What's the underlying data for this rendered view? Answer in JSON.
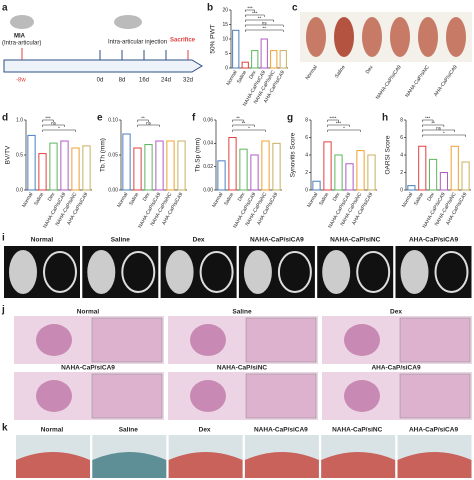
{
  "panel_labels": [
    "a",
    "b",
    "c",
    "d",
    "e",
    "f",
    "g",
    "h",
    "i",
    "j",
    "k"
  ],
  "timeline": {
    "start_title": "MIA",
    "start_subtitle": "(Intra-articular)",
    "start_day": "-8w",
    "injection_title": "Intra-articular injection",
    "days": [
      "0d",
      "8d",
      "16d",
      "24d",
      "32d"
    ],
    "end_label": "Sacrifice"
  },
  "groups": [
    "Normal",
    "Saline",
    "Dex",
    "NAHA-CaP/siCA9",
    "NAHA-CaP/siNC",
    "AHA-CaP/siCA9"
  ],
  "chart_data": [
    {
      "type": "bar",
      "ylabel": "50% PWT",
      "categories": [
        "Normal",
        "Saline",
        "Dex",
        "NAHA-CaP/siCA9",
        "NAHA-CaP/siNC",
        "AHA-CaP/siCA9"
      ],
      "values": [
        13,
        2,
        6,
        10,
        6,
        6
      ],
      "colors": [
        "#4a7fc1",
        "#e0413f",
        "#5cb85c",
        "#b05cc6",
        "#f0a030",
        "#c8b060"
      ],
      "ylim": [
        0,
        20
      ],
      "yticks": [
        0,
        5,
        10,
        15,
        20
      ],
      "annotations": [
        "***",
        "***",
        "**",
        "ns",
        "**"
      ]
    },
    {
      "type": "bar",
      "ylabel": "BV/TV",
      "categories": [
        "Normal",
        "Saline",
        "Dex",
        "NAHA-CaP/siCA9",
        "NAHA-CaP/siNC",
        "AHA-CaP/siCA9"
      ],
      "values": [
        0.78,
        0.52,
        0.67,
        0.7,
        0.6,
        0.63
      ],
      "colors": [
        "#4a7fc1",
        "#e0413f",
        "#5cb85c",
        "#b05cc6",
        "#f0a030",
        "#c8b060"
      ],
      "ylim": [
        0,
        1.0
      ],
      "yticks": [
        {
          "value": 0,
          "label": "0.0"
        },
        {
          "value": 0.5,
          "label": "0.5"
        },
        {
          "value": 1.0,
          "label": "1.0"
        }
      ],
      "annotations": [
        "***",
        "ns",
        "*"
      ]
    },
    {
      "type": "bar",
      "ylabel": "Tb.Th (mm)",
      "categories": [
        "Normal",
        "Saline",
        "Dex",
        "NAHA-CaP/siCA9",
        "NAHA-CaP/siNC",
        "AHA-CaP/siCA9"
      ],
      "values": [
        0.08,
        0.06,
        0.065,
        0.07,
        0.07,
        0.07
      ],
      "colors": [
        "#4a7fc1",
        "#e0413f",
        "#5cb85c",
        "#b05cc6",
        "#f0a030",
        "#c8b060"
      ],
      "ylim": [
        0,
        0.1
      ],
      "yticks": [
        {
          "value": 0,
          "label": "0.00"
        },
        {
          "value": 0.05,
          "label": "0.05"
        },
        {
          "value": 0.1,
          "label": "0.10"
        }
      ],
      "annotations": [
        "**",
        "ns"
      ]
    },
    {
      "type": "bar",
      "ylabel": "Tb.Sp (mm)",
      "categories": [
        "Normal",
        "Saline",
        "Dex",
        "NAHA-CaP/siCA9",
        "NAHA-CaP/siNC",
        "AHA-CaP/siCA9"
      ],
      "values": [
        0.025,
        0.045,
        0.035,
        0.03,
        0.042,
        0.04
      ],
      "colors": [
        "#4a7fc1",
        "#e0413f",
        "#5cb85c",
        "#b05cc6",
        "#f0a030",
        "#c8b060"
      ],
      "ylim": [
        0,
        0.06
      ],
      "yticks": [
        {
          "value": 0,
          "label": "0.00"
        },
        {
          "value": 0.02,
          "label": "0.02"
        },
        {
          "value": 0.04,
          "label": "0.04"
        },
        {
          "value": 0.06,
          "label": "0.06"
        }
      ],
      "annotations": [
        "**",
        "**",
        "*"
      ]
    },
    {
      "type": "bar",
      "ylabel": "Synovitis Score",
      "categories": [
        "Normal",
        "Saline",
        "Dex",
        "NAHA-CaP/siCA9",
        "NAHA-CaP/siNC",
        "AHA-CaP/siCA9"
      ],
      "values": [
        1,
        5.5,
        4,
        3,
        4.5,
        4
      ],
      "colors": [
        "#4a7fc1",
        "#e0413f",
        "#5cb85c",
        "#b05cc6",
        "#f0a030",
        "#c8b060"
      ],
      "ylim": [
        0,
        8
      ],
      "yticks": [
        0,
        2,
        4,
        6,
        8
      ],
      "annotations": [
        "****",
        "***",
        "*"
      ]
    },
    {
      "type": "bar",
      "ylabel": "OARSI Score",
      "categories": [
        "Normal",
        "Saline",
        "Dex",
        "NAHA-CaP/siCA9",
        "NAHA-CaP/siNC",
        "AHA-CaP/siCA9"
      ],
      "values": [
        0.5,
        5,
        3.5,
        2,
        5,
        3.2
      ],
      "colors": [
        "#4a7fc1",
        "#e0413f",
        "#5cb85c",
        "#b05cc6",
        "#f0a030",
        "#c8b060"
      ],
      "ylim": [
        0,
        8
      ],
      "yticks": [
        0,
        2,
        4,
        6,
        8
      ],
      "annotations": [
        "***",
        "**",
        "ns",
        "*"
      ]
    }
  ]
}
